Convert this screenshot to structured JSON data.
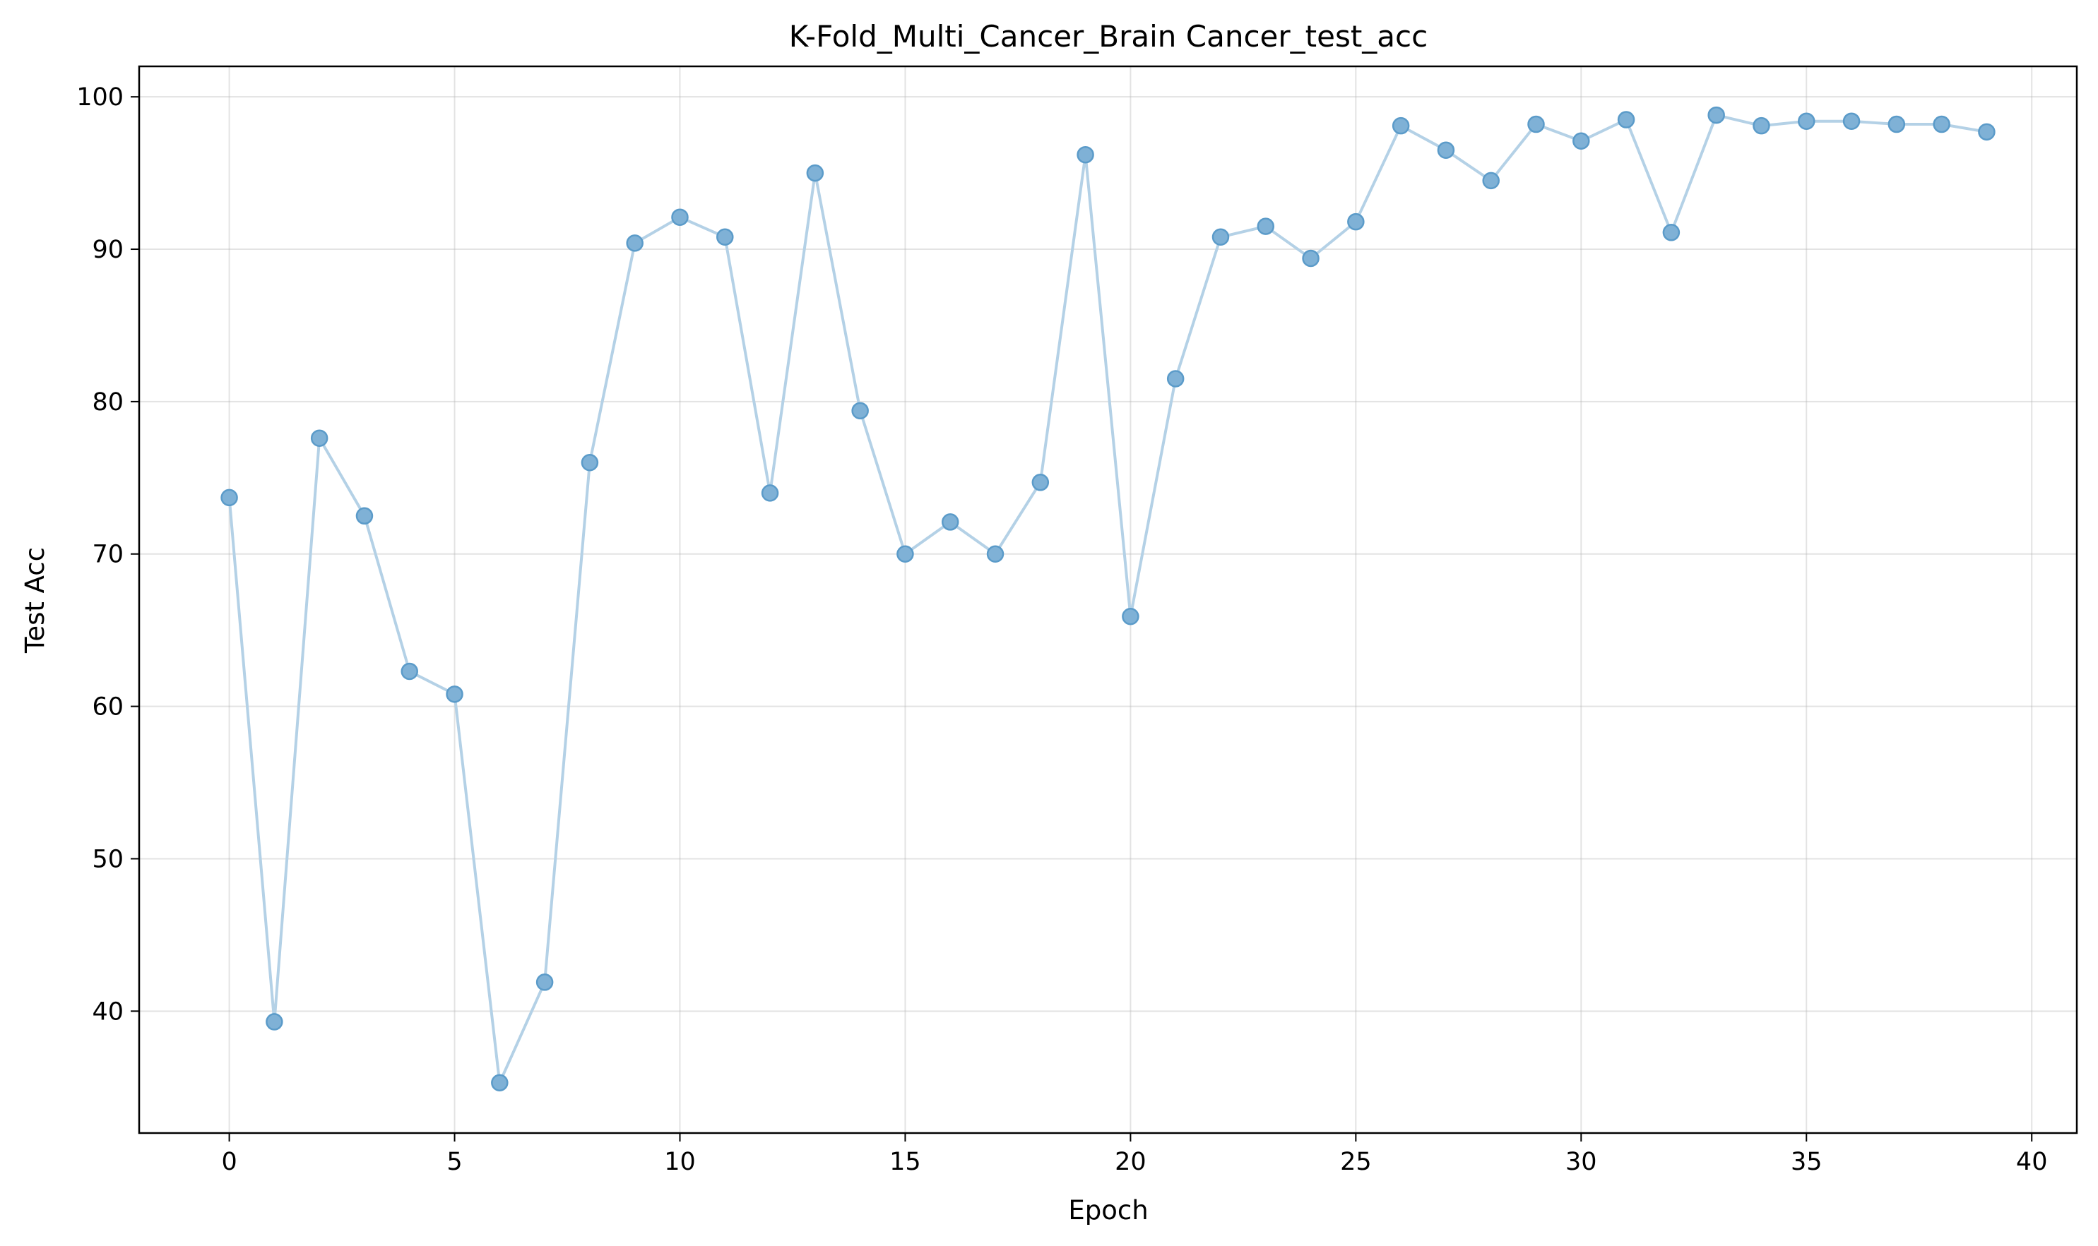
{
  "chart_data": {
    "type": "line",
    "title": "K-Fold_Multi_Cancer_Brain Cancer_test_acc",
    "xlabel": "Epoch",
    "ylabel": "Test Acc",
    "xlim": [
      -2,
      41
    ],
    "ylim": [
      32,
      102
    ],
    "xticks": [
      0,
      5,
      10,
      15,
      20,
      25,
      30,
      35,
      40
    ],
    "yticks": [
      40,
      50,
      60,
      70,
      80,
      90,
      100
    ],
    "grid": true,
    "legend": "none",
    "colors": {
      "line": "#b4d1e6",
      "point_fill": "#7fb1d6",
      "point_edge": "#5b9bc9"
    },
    "x": [
      0,
      1,
      2,
      3,
      4,
      5,
      6,
      7,
      8,
      9,
      10,
      11,
      12,
      13,
      14,
      15,
      16,
      17,
      18,
      19,
      20,
      21,
      22,
      23,
      24,
      25,
      26,
      27,
      28,
      29,
      30,
      31,
      32,
      33,
      34,
      35,
      36,
      37,
      38,
      39
    ],
    "series": [
      {
        "values": [
          73.7,
          39.3,
          77.6,
          72.5,
          62.3,
          60.8,
          35.3,
          41.9,
          76.0,
          90.4,
          92.1,
          90.8,
          74.0,
          95.0,
          79.4,
          70.0,
          72.1,
          70.0,
          74.7,
          96.2,
          65.9,
          81.5,
          90.8,
          91.5,
          89.4,
          91.8,
          98.1,
          96.5,
          94.5,
          98.2,
          97.1,
          98.5,
          91.1,
          98.8,
          98.1,
          98.4,
          98.4,
          98.2,
          98.2,
          97.7
        ]
      }
    ]
  }
}
